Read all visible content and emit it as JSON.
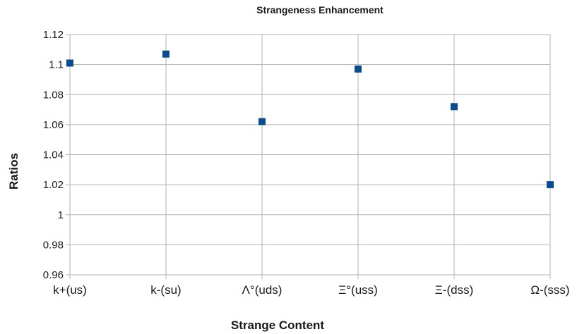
{
  "chart_data": {
    "type": "scatter",
    "title": "Strangeness Enhancement",
    "xlabel": "Strange Content",
    "ylabel": "Ratios",
    "categories": [
      "k+(us)",
      "k-(su)",
      "Λ°(uds)",
      "Ξ°(uss)",
      "Ξ-(dss)",
      "Ω-(sss)"
    ],
    "values": [
      1.101,
      1.107,
      1.062,
      1.097,
      1.072,
      1.02
    ],
    "ylim": [
      0.96,
      1.12
    ],
    "yticks": [
      "0.96",
      "0.98",
      "1",
      "1.02",
      "1.04",
      "1.06",
      "1.08",
      "1.1",
      "1.12"
    ],
    "grid": true,
    "legend": "none",
    "marker": "square",
    "colors": {
      "marker": "#0a4c8c",
      "grid": "#b3b3b3",
      "text": "#1a1a1a"
    }
  }
}
